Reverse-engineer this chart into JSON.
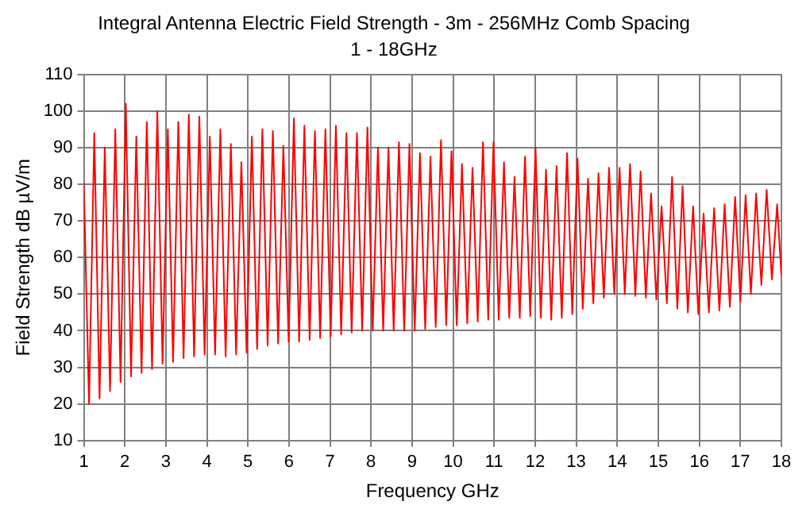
{
  "chart_data": {
    "type": "line",
    "title": "Integral Antenna Electric Field Strength - 3m - 256MHz Comb Spacing",
    "subtitle": "1 - 18GHz",
    "xlabel": "Frequency GHz",
    "ylabel": "Field Strength dB µV/m",
    "x": [
      1,
      1.128,
      1.256,
      1.384,
      1.512,
      1.64,
      1.768,
      1.896,
      2.024,
      2.152,
      2.28,
      2.408,
      2.536,
      2.664,
      2.792,
      2.92,
      3.048,
      3.176,
      3.304,
      3.432,
      3.56,
      3.688,
      3.816,
      3.944,
      4.072,
      4.2,
      4.328,
      4.456,
      4.584,
      4.712,
      4.84,
      4.968,
      5.096,
      5.224,
      5.352,
      5.48,
      5.608,
      5.736,
      5.864,
      5.992,
      6.12,
      6.248,
      6.376,
      6.504,
      6.632,
      6.76,
      6.888,
      7.016,
      7.144,
      7.272,
      7.4,
      7.528,
      7.656,
      7.784,
      7.912,
      8.04,
      8.168,
      8.296,
      8.424,
      8.552,
      8.68,
      8.808,
      8.936,
      9.064,
      9.192,
      9.32,
      9.448,
      9.576,
      9.704,
      9.832,
      9.96,
      10.088,
      10.216,
      10.344,
      10.472,
      10.6,
      10.728,
      10.856,
      10.984,
      11.112,
      11.24,
      11.368,
      11.496,
      11.624,
      11.752,
      11.88,
      12.008,
      12.136,
      12.264,
      12.392,
      12.52,
      12.648,
      12.776,
      12.904,
      13.032,
      13.16,
      13.288,
      13.416,
      13.544,
      13.672,
      13.8,
      13.928,
      14.056,
      14.184,
      14.312,
      14.44,
      14.568,
      14.696,
      14.824,
      14.952,
      15.08,
      15.208,
      15.336,
      15.464,
      15.592,
      15.72,
      15.848,
      15.976,
      16.104,
      16.232,
      16.36,
      16.488,
      16.616,
      16.744,
      16.872,
      17,
      17.128,
      17.256,
      17.384,
      17.512,
      17.64,
      17.768,
      17.896,
      18
    ],
    "series": [
      {
        "color": "#ff0000",
        "values": [
          80.5,
          20,
          94,
          21.5,
          90,
          23.5,
          95,
          26,
          102,
          27.5,
          93,
          28.5,
          97,
          29.5,
          100,
          31,
          95,
          31.5,
          97,
          32.5,
          99,
          33,
          98.5,
          33.5,
          93,
          33.5,
          95,
          33,
          91,
          33.5,
          86,
          34,
          93,
          35,
          95,
          36,
          94.5,
          36.5,
          90.5,
          37,
          98,
          37,
          96,
          37.5,
          94.5,
          38,
          95,
          38.5,
          96,
          39,
          94,
          39.5,
          94,
          40,
          95.5,
          40,
          90,
          40,
          90,
          40,
          91.5,
          40,
          91,
          40,
          88.5,
          40.5,
          87.5,
          41,
          92,
          41.5,
          89,
          41.5,
          85.5,
          42,
          84.5,
          42.5,
          91.5,
          43,
          91.5,
          43,
          86,
          43.5,
          82,
          43.5,
          87.5,
          44,
          90,
          43.5,
          84,
          43,
          85,
          43.5,
          88.5,
          44.5,
          87,
          46,
          81.5,
          47.5,
          83,
          49,
          84.5,
          50,
          84.5,
          50,
          85.5,
          49.5,
          83.5,
          49,
          77.5,
          48.5,
          74,
          47.5,
          82,
          46,
          79.5,
          45,
          74,
          44.5,
          72,
          45,
          73.5,
          45.5,
          74.5,
          46.5,
          76.5,
          48,
          77,
          50,
          77.5,
          52.5,
          78.5,
          54,
          74.5,
          55
        ]
      }
    ],
    "xlim": [
      1,
      18
    ],
    "xticks": [
      1,
      2,
      3,
      4,
      5,
      6,
      7,
      8,
      9,
      10,
      11,
      12,
      13,
      14,
      15,
      16,
      17,
      18
    ],
    "ylim": [
      10,
      110
    ],
    "yticks": [
      10,
      20,
      30,
      40,
      50,
      60,
      70,
      80,
      90,
      100,
      110
    ],
    "grid": true,
    "legend": false,
    "marker": "none",
    "line_style": "solid"
  }
}
